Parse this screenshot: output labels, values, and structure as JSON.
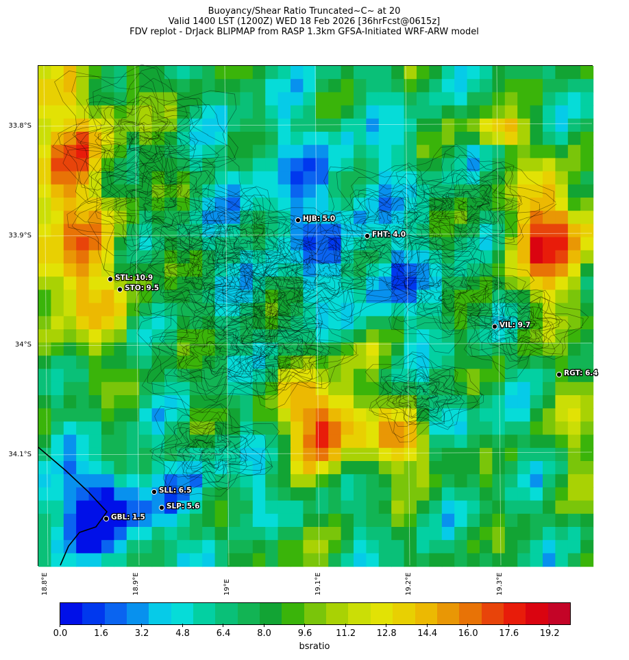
{
  "title": {
    "line1": "Buoyancy/Shear Ratio Truncated~C~    at 20",
    "line2": "Valid 1400 LST (1200Z) WED 18 Feb 2026 [36hrFcst@0615z]",
    "line3": "FDV replot - DrJack BLIPMAP from RASP 1.3km GFSA-Initiated WRF-ARW model"
  },
  "map": {
    "lat_labels": [
      "33.8°S",
      "33.9°S",
      "34°S",
      "34.1°S"
    ],
    "lon_labels": [
      "18.8°E",
      "18.9°E",
      "19°E",
      "19.1°E",
      "19.2°E",
      "19.3°E"
    ],
    "stations": [
      {
        "id": "STL",
        "label": "STL: 10.9",
        "value": 10.9
      },
      {
        "id": "STO",
        "label": "STO: 9.5",
        "value": 9.5
      },
      {
        "id": "HJB",
        "label": "HJB: 5.0",
        "value": 5.0
      },
      {
        "id": "FHT",
        "label": "FHT: 4.0",
        "value": 4.0
      },
      {
        "id": "VIL",
        "label": "VIL: 9.7",
        "value": 9.7
      },
      {
        "id": "RGT",
        "label": "RGT: 6.4",
        "value": 6.4
      },
      {
        "id": "SLL",
        "label": "SLL: 6.5",
        "value": 6.5
      },
      {
        "id": "SLP",
        "label": "SLP: 5.6",
        "value": 5.6
      },
      {
        "id": "GBL",
        "label": "GBL: 1.5",
        "value": 1.5
      }
    ]
  },
  "colorbar": {
    "title": "bsratio",
    "tick_labels": [
      "0.0",
      "1.6",
      "3.2",
      "4.8",
      "6.4",
      "8.0",
      "9.6",
      "11.2",
      "12.8",
      "14.4",
      "16.0",
      "17.6",
      "19.2"
    ],
    "colors": [
      "#0010e8",
      "#0038ee",
      "#0a64f0",
      "#0891ee",
      "#06cbe8",
      "#06dcd8",
      "#03d0a2",
      "#0ac078",
      "#12b454",
      "#12a434",
      "#3ab40a",
      "#7ac50a",
      "#a9d204",
      "#cbde06",
      "#e2e205",
      "#e8d002",
      "#ecb902",
      "#e99705",
      "#e87306",
      "#e8440a",
      "#e81c0a",
      "#da0410",
      "#c40427"
    ]
  }
}
